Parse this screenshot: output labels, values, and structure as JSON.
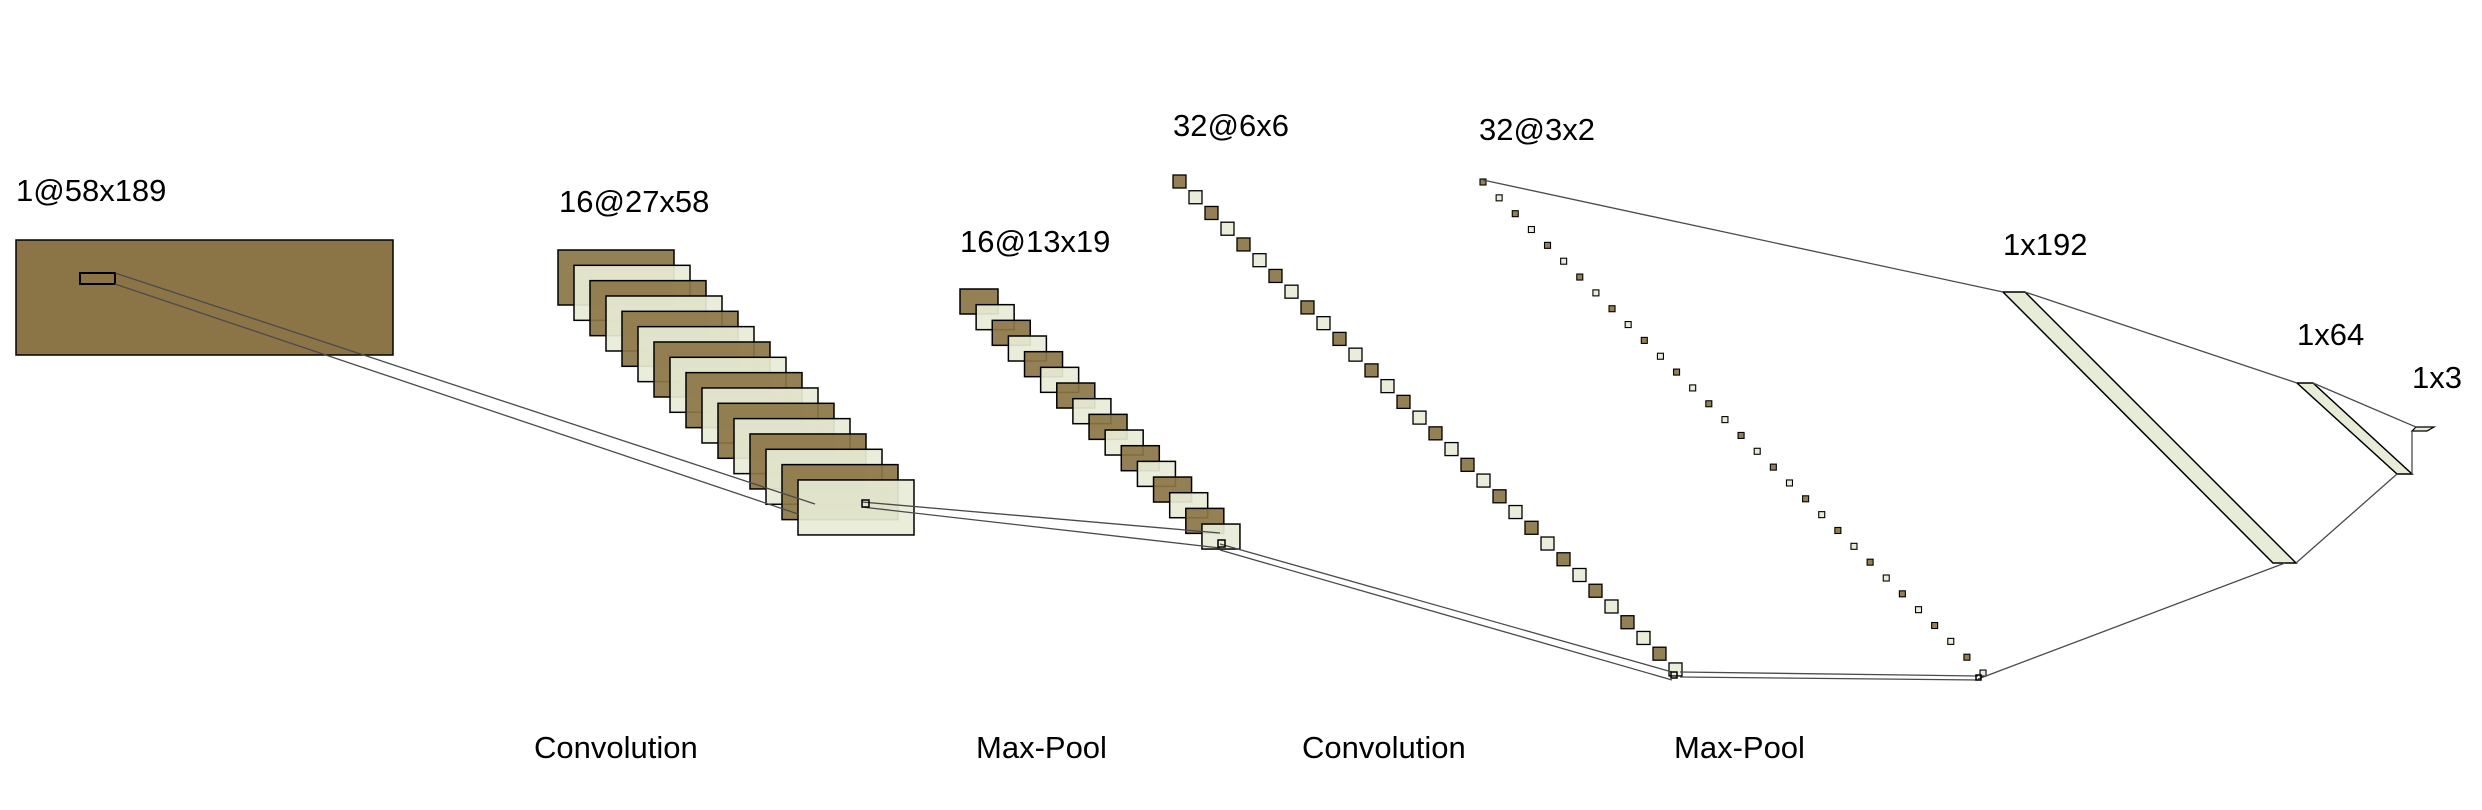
{
  "colors": {
    "dark_fill": "#8b7547",
    "light_fill": "#e7ecd6",
    "stroke": "#000000",
    "connector": "#4a4a4a",
    "background": "#ffffff"
  },
  "layers": [
    {
      "id": "input",
      "shape": "1@58x189"
    },
    {
      "id": "conv1",
      "shape": "16@27x58"
    },
    {
      "id": "pool1",
      "shape": "16@13x19"
    },
    {
      "id": "conv2",
      "shape": "32@6x6"
    },
    {
      "id": "pool2",
      "shape": "32@3x2"
    },
    {
      "id": "fc1",
      "shape": "1x192"
    },
    {
      "id": "fc2",
      "shape": "1x64"
    },
    {
      "id": "out",
      "shape": "1x3"
    }
  ],
  "operations": [
    "Convolution",
    "Max-Pool",
    "Convolution",
    "Max-Pool"
  ]
}
